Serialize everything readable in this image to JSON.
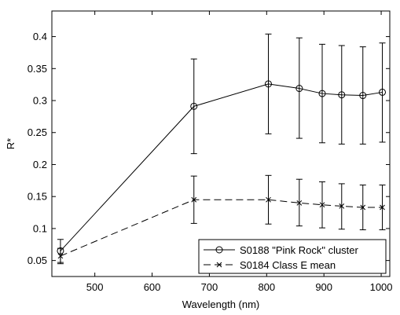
{
  "chart_data": {
    "type": "line",
    "xlabel": "Wavelength (nm)",
    "ylabel": "R*",
    "xlim": [
      425,
      1015
    ],
    "ylim": [
      0.025,
      0.44
    ],
    "xticks": [
      500,
      600,
      700,
      800,
      900,
      1000
    ],
    "xtick_labels": [
      "500",
      "600",
      "700",
      "800",
      "900",
      "1000"
    ],
    "yticks": [
      0.05,
      0.1,
      0.15,
      0.2,
      0.25,
      0.3,
      0.35,
      0.4
    ],
    "ytick_labels": [
      "0.05",
      "0.1",
      "0.15",
      "0.2",
      "0.25",
      "0.3",
      "0.35",
      "0.4"
    ],
    "grid": false,
    "legend_position": "bottom-right",
    "series": [
      {
        "name": "S0188 \"Pink Rock\" cluster",
        "marker": "circle",
        "line_style": "solid",
        "color": "#000000",
        "points": [
          {
            "x": 440,
            "y": 0.065,
            "err_lo": 0.047,
            "err_hi": 0.083
          },
          {
            "x": 673,
            "y": 0.291,
            "err_lo": 0.217,
            "err_hi": 0.365
          },
          {
            "x": 803,
            "y": 0.326,
            "err_lo": 0.248,
            "err_hi": 0.404
          },
          {
            "x": 857,
            "y": 0.319,
            "err_lo": 0.241,
            "err_hi": 0.398
          },
          {
            "x": 897,
            "y": 0.311,
            "err_lo": 0.234,
            "err_hi": 0.388
          },
          {
            "x": 931,
            "y": 0.309,
            "err_lo": 0.232,
            "err_hi": 0.386
          },
          {
            "x": 968,
            "y": 0.308,
            "err_lo": 0.232,
            "err_hi": 0.384
          },
          {
            "x": 1002,
            "y": 0.313,
            "err_lo": 0.235,
            "err_hi": 0.39
          }
        ]
      },
      {
        "name": "S0184 Class E mean",
        "marker": "x",
        "line_style": "dashed",
        "color": "#000000",
        "points": [
          {
            "x": 440,
            "y": 0.057,
            "err_lo": 0.045,
            "err_hi": 0.069
          },
          {
            "x": 673,
            "y": 0.145,
            "err_lo": 0.108,
            "err_hi": 0.182
          },
          {
            "x": 803,
            "y": 0.145,
            "err_lo": 0.107,
            "err_hi": 0.183
          },
          {
            "x": 857,
            "y": 0.14,
            "err_lo": 0.104,
            "err_hi": 0.177
          },
          {
            "x": 897,
            "y": 0.137,
            "err_lo": 0.101,
            "err_hi": 0.173
          },
          {
            "x": 931,
            "y": 0.135,
            "err_lo": 0.099,
            "err_hi": 0.17
          },
          {
            "x": 968,
            "y": 0.133,
            "err_lo": 0.098,
            "err_hi": 0.168
          },
          {
            "x": 1002,
            "y": 0.133,
            "err_lo": 0.098,
            "err_hi": 0.168
          }
        ]
      }
    ]
  }
}
